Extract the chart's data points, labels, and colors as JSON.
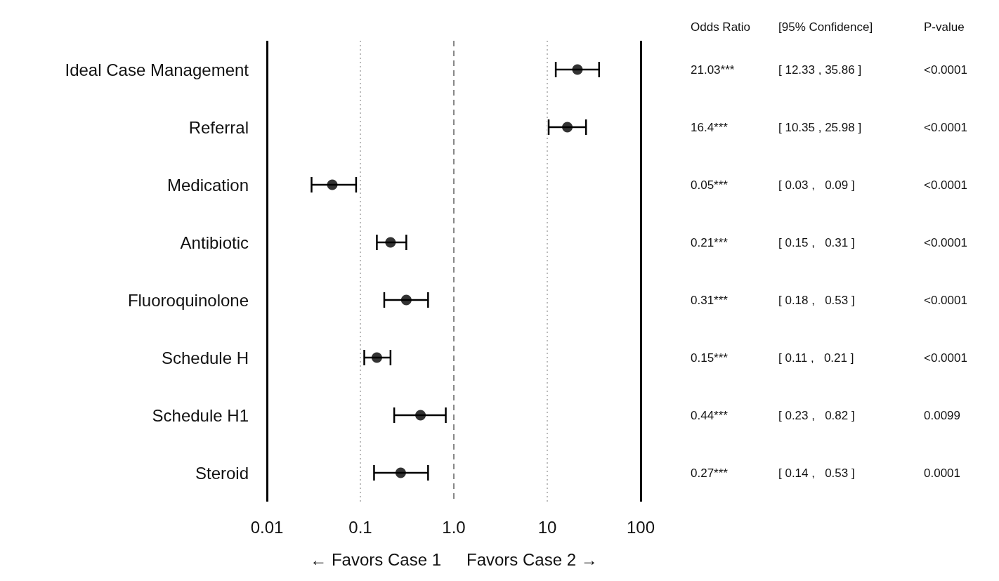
{
  "chart_data": {
    "type": "scatter",
    "orientation": "horizontal",
    "log": "x",
    "marker": "circle",
    "categories": [
      "Ideal Case Management",
      "Referral",
      "Medication",
      "Antibiotic",
      "Fluoroquinolone",
      "Schedule H",
      "Schedule H1",
      "Steroid"
    ],
    "values": [
      21.03,
      16.4,
      0.05,
      0.21,
      0.31,
      0.15,
      0.44,
      0.27
    ],
    "errors": [
      [
        12.33,
        35.86
      ],
      [
        10.35,
        25.98
      ],
      [
        0.03,
        0.09
      ],
      [
        0.15,
        0.31
      ],
      [
        0.18,
        0.53
      ],
      [
        0.11,
        0.21
      ],
      [
        0.23,
        0.82
      ],
      [
        0.14,
        0.53
      ]
    ],
    "color": "#000000",
    "xlim": [
      0.01,
      100
    ],
    "xticks": [
      0.01,
      0.1,
      {
        "value": 1,
        "label": "1.0"
      },
      10,
      100
    ],
    "ref_lines": [
      {
        "axis": "x",
        "value": 0.1,
        "color": "#bbbbbb",
        "line_style": "dotted"
      },
      {
        "axis": "x",
        "value": 1,
        "color": "#888888",
        "line_style": "dashed"
      },
      {
        "axis": "x",
        "value": 10,
        "color": "#bbbbbb",
        "line_style": "dotted"
      }
    ],
    "annotations": [
      "Odds Ratio",
      "[95% Confidence]",
      "P-value",
      "21.03***",
      "[ 12.33 , 35.86 ]",
      "<0.0001",
      "16.4***",
      "[ 10.35 , 25.98 ]",
      "<0.0001",
      "0.05***",
      "[ 0.03 ,   0.09 ]",
      "<0.0001",
      "0.21***",
      "[ 0.15 ,   0.31 ]",
      "<0.0001",
      "0.31***",
      "[ 0.18 ,   0.53 ]",
      "<0.0001",
      "0.15***",
      "[ 0.11 ,   0.21 ]",
      "<0.0001",
      "0.44***",
      "[ 0.23 ,   0.82 ]",
      "0.0099",
      "0.27***",
      "[ 0.14 ,   0.53 ]",
      "0.0001",
      "← Favors Case 1",
      "Favors Case 2 →"
    ]
  }
}
